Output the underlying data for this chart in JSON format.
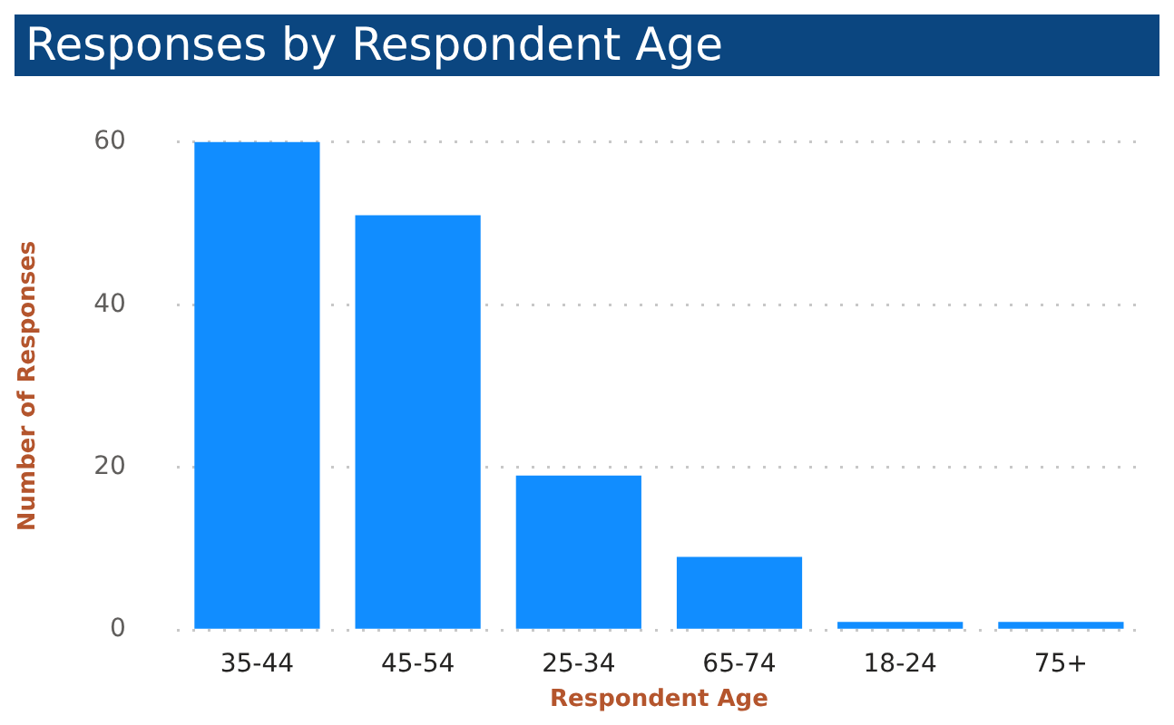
{
  "chart_data": {
    "type": "bar",
    "title": "Responses by Respondent Age",
    "xlabel": "Respondent Age",
    "ylabel": "Number of Responses",
    "categories": [
      "35-44",
      "45-54",
      "25-34",
      "65-74",
      "18-24",
      "75+"
    ],
    "values": [
      60,
      51,
      19,
      9,
      1,
      1
    ],
    "color": "#118dff",
    "ylim": [
      0,
      60
    ],
    "yticks": [
      0,
      20,
      40,
      60
    ],
    "grid": "y",
    "legend": false
  }
}
